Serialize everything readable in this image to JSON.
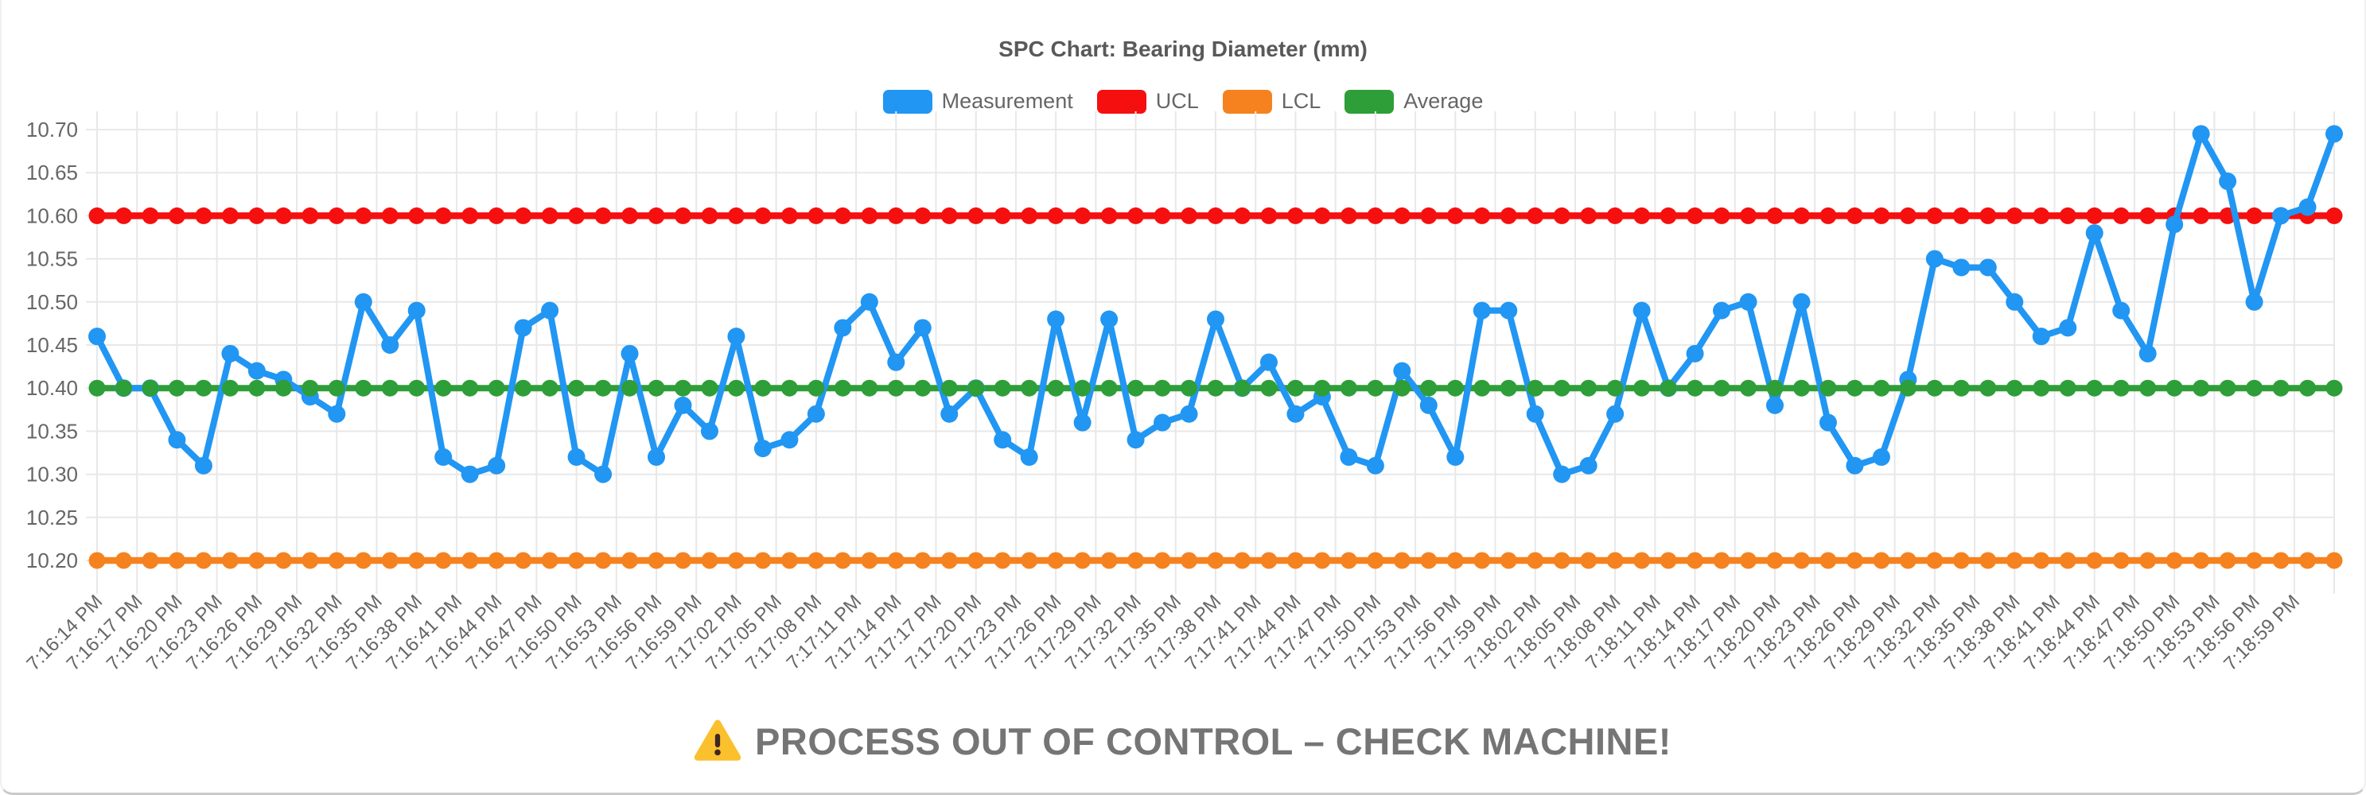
{
  "title": "SPC Chart: Bearing Diameter (mm)",
  "legend": [
    {
      "label": "Measurement",
      "color": "#2196F3"
    },
    {
      "label": "UCL",
      "color": "#F50F0F"
    },
    {
      "label": "LCL",
      "color": "#F5821F"
    },
    {
      "label": "Average",
      "color": "#2E9E38"
    }
  ],
  "warning": {
    "icon": "warning-triangle",
    "text": "PROCESS OUT OF CONTROL – CHECK MACHINE!",
    "icon_color": "#FBC02D",
    "text_color": "#757575"
  },
  "colors": {
    "measurement": "#2196F3",
    "ucl": "#F50F0F",
    "lcl": "#F5821F",
    "average": "#2E9E38",
    "grid": "#E8E8E8",
    "axis_text": "#666666"
  },
  "chart_data": {
    "type": "line",
    "title": "SPC Chart: Bearing Diameter (mm)",
    "legend_position": "top",
    "grid": true,
    "y_axis": {
      "min": 10.2,
      "max": 10.7,
      "step": 0.05,
      "tick_labels": [
        "10.20",
        "10.25",
        "10.30",
        "10.35",
        "10.40",
        "10.45",
        "10.50",
        "10.55",
        "10.60",
        "10.65",
        "10.70"
      ]
    },
    "x_axis": {
      "start": "7:16:14 PM",
      "end": "7:18:59 PM",
      "tick_interval_seconds": 3,
      "tick_labels": [
        "7:16:14 PM",
        "7:16:17 PM",
        "7:16:20 PM",
        "7:16:23 PM",
        "7:16:26 PM",
        "7:16:29 PM",
        "7:16:32 PM",
        "7:16:35 PM",
        "7:16:38 PM",
        "7:16:41 PM",
        "7:16:44 PM",
        "7:16:47 PM",
        "7:16:50 PM",
        "7:16:53 PM",
        "7:16:56 PM",
        "7:16:59 PM",
        "7:17:02 PM",
        "7:17:05 PM",
        "7:17:08 PM",
        "7:17:11 PM",
        "7:17:14 PM",
        "7:17:17 PM",
        "7:17:20 PM",
        "7:17:23 PM",
        "7:17:26 PM",
        "7:17:29 PM",
        "7:17:32 PM",
        "7:17:35 PM",
        "7:17:38 PM",
        "7:17:41 PM",
        "7:17:44 PM",
        "7:17:47 PM",
        "7:17:50 PM",
        "7:17:53 PM",
        "7:17:56 PM",
        "7:17:59 PM",
        "7:18:02 PM",
        "7:18:05 PM",
        "7:18:08 PM",
        "7:18:11 PM",
        "7:18:14 PM",
        "7:18:17 PM",
        "7:18:20 PM",
        "7:18:23 PM",
        "7:18:26 PM",
        "7:18:29 PM",
        "7:18:32 PM",
        "7:18:35 PM",
        "7:18:38 PM",
        "7:18:41 PM",
        "7:18:44 PM",
        "7:18:47 PM",
        "7:18:50 PM",
        "7:18:53 PM",
        "7:18:56 PM",
        "7:18:59 PM"
      ]
    },
    "series": [
      {
        "name": "Measurement",
        "color": "#2196F3",
        "style": "line+points",
        "start_time": "7:16:14 PM",
        "sample_interval_seconds": 2,
        "values": [
          10.46,
          10.4,
          10.4,
          10.34,
          10.31,
          10.44,
          10.42,
          10.41,
          10.39,
          10.37,
          10.5,
          10.45,
          10.49,
          10.32,
          10.3,
          10.31,
          10.47,
          10.49,
          10.32,
          10.3,
          10.44,
          10.32,
          10.38,
          10.35,
          10.46,
          10.33,
          10.34,
          10.37,
          10.47,
          10.5,
          10.43,
          10.47,
          10.37,
          10.4,
          10.34,
          10.32,
          10.48,
          10.36,
          10.48,
          10.34,
          10.36,
          10.37,
          10.48,
          10.4,
          10.43,
          10.37,
          10.39,
          10.32,
          10.31,
          10.42,
          10.38,
          10.32,
          10.49,
          10.49,
          10.37,
          10.3,
          10.31,
          10.37,
          10.49,
          10.4,
          10.44,
          10.49,
          10.5,
          10.38,
          10.5,
          10.36,
          10.31,
          10.32,
          10.41,
          10.55,
          10.54,
          10.54,
          10.5,
          10.46,
          10.47,
          10.58,
          10.49,
          10.44,
          10.59,
          10.695,
          10.64,
          10.5,
          10.6,
          10.61,
          10.695
        ]
      },
      {
        "name": "UCL",
        "color": "#F50F0F",
        "style": "line+points",
        "constant_value": 10.6
      },
      {
        "name": "LCL",
        "color": "#F5821F",
        "style": "line+points",
        "constant_value": 10.2
      },
      {
        "name": "Average",
        "color": "#2E9E38",
        "style": "line+points",
        "constant_value": 10.4
      }
    ]
  }
}
